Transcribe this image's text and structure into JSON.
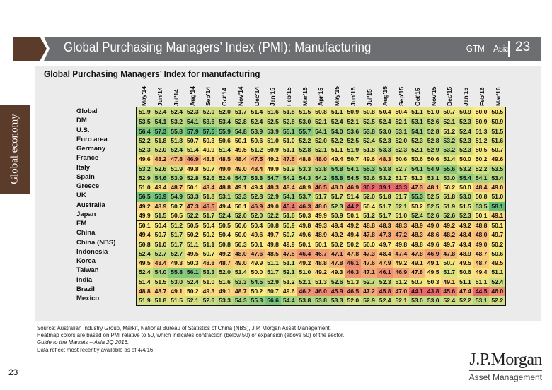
{
  "header": {
    "title": "Global Purchasing Managers’ Index (PMI): Manufacturing",
    "section": "GTM – Asia",
    "page_number": "23"
  },
  "sidebar": {
    "label": "Global economy"
  },
  "panel": {
    "subtitle": "Global Purchasing Managers’ Index for manufacturing"
  },
  "heatmap_colors": {
    "low": "#e8696b",
    "mid": "#ffeb84",
    "high": "#63be7b",
    "midpoint": 50
  },
  "chart_data": {
    "type": "heatmap",
    "title": "Global Purchasing Managers’ Index for manufacturing",
    "columns": [
      "May'14",
      "Jun'14",
      "Jul'14",
      "Aug'14",
      "Sep'14",
      "Oct'14",
      "Nov'14",
      "Dec'14",
      "Jan'15",
      "Feb'15",
      "Mar'15",
      "Apr'15",
      "May'15",
      "Jun'15",
      "Jul'15",
      "Aug'15",
      "Sep'15",
      "Oct'15",
      "Nov'15",
      "Dec'15",
      "Jan'16",
      "Feb'16",
      "Mar'16"
    ],
    "rows": [
      {
        "name": "Global",
        "values": [
          51.9,
          52.4,
          52.4,
          52.3,
          52.0,
          52.0,
          51.7,
          51.4,
          51.6,
          51.8,
          51.5,
          50.8,
          51.1,
          50.9,
          50.8,
          50.4,
          50.4,
          51.1,
          51.0,
          50.7,
          50.9,
          50.0,
          50.5
        ]
      },
      {
        "name": "DM",
        "values": [
          53.5,
          54.1,
          53.2,
          54.1,
          53.6,
          53.4,
          52.8,
          52.4,
          52.5,
          52.8,
          53.0,
          52.1,
          52.4,
          52.1,
          52.5,
          52.4,
          52.1,
          53.1,
          52.6,
          52.1,
          52.3,
          50.9,
          50.9
        ]
      },
      {
        "name": "U.S.",
        "values": [
          56.4,
          57.3,
          55.8,
          57.9,
          57.5,
          55.9,
          54.8,
          53.9,
          53.9,
          55.1,
          55.7,
          54.1,
          54.0,
          53.6,
          53.8,
          53.0,
          53.1,
          54.1,
          52.8,
          51.2,
          52.4,
          51.3,
          51.5
        ]
      },
      {
        "name": "Euro area",
        "values": [
          52.2,
          51.8,
          51.8,
          50.7,
          50.3,
          50.6,
          50.1,
          50.6,
          51.0,
          51.0,
          52.2,
          52.0,
          52.2,
          52.5,
          52.4,
          52.3,
          52.0,
          52.3,
          52.8,
          53.2,
          52.3,
          51.2,
          51.6
        ]
      },
      {
        "name": "Germany",
        "values": [
          52.3,
          52.0,
          52.4,
          51.4,
          49.9,
          51.4,
          49.5,
          51.2,
          50.9,
          51.1,
          52.8,
          52.1,
          51.1,
          51.9,
          51.8,
          53.3,
          52.3,
          52.1,
          52.9,
          53.2,
          52.3,
          50.5,
          50.7
        ]
      },
      {
        "name": "France",
        "values": [
          49.6,
          48.2,
          47.8,
          46.9,
          48.8,
          48.5,
          48.4,
          47.5,
          49.2,
          47.6,
          48.8,
          48.0,
          49.4,
          50.7,
          49.6,
          48.3,
          50.6,
          50.6,
          50.6,
          51.4,
          50.0,
          50.2,
          49.6
        ]
      },
      {
        "name": "Italy",
        "values": [
          53.2,
          52.6,
          51.9,
          49.8,
          50.7,
          49.0,
          49.0,
          48.4,
          49.9,
          51.9,
          53.3,
          53.8,
          54.8,
          54.1,
          55.3,
          53.8,
          52.7,
          54.1,
          54.9,
          55.6,
          53.2,
          52.2,
          53.5
        ]
      },
      {
        "name": "Spain",
        "values": [
          52.9,
          54.6,
          53.9,
          52.8,
          52.6,
          52.6,
          54.7,
          53.8,
          54.7,
          54.2,
          54.3,
          54.2,
          55.8,
          54.5,
          53.6,
          53.2,
          51.7,
          51.3,
          53.1,
          53.0,
          55.4,
          54.1,
          53.4
        ]
      },
      {
        "name": "Greece",
        "values": [
          51.0,
          49.4,
          48.7,
          50.1,
          48.4,
          48.8,
          49.1,
          49.4,
          48.3,
          48.4,
          48.9,
          46.5,
          48.0,
          46.9,
          30.2,
          39.1,
          43.3,
          47.3,
          48.1,
          50.2,
          50.0,
          48.4,
          49.0
        ]
      },
      {
        "name": "UK",
        "values": [
          56.5,
          56.9,
          54.9,
          53.3,
          51.8,
          53.1,
          53.3,
          52.8,
          52.9,
          54.1,
          53.7,
          51.7,
          51.7,
          51.4,
          52.0,
          51.8,
          51.7,
          55.3,
          52.5,
          51.8,
          53.0,
          50.8,
          51.0
        ]
      },
      {
        "name": "Australia",
        "values": [
          49.2,
          48.9,
          50.7,
          47.3,
          46.5,
          49.4,
          50.1,
          46.9,
          49.0,
          45.4,
          46.3,
          48.0,
          52.3,
          44.2,
          50.4,
          51.7,
          52.1,
          50.2,
          52.5,
          51.9,
          51.5,
          53.5,
          58.1
        ]
      },
      {
        "name": "Japan",
        "values": [
          49.9,
          51.5,
          50.5,
          52.2,
          51.7,
          52.4,
          52.0,
          52.0,
          52.2,
          51.6,
          50.3,
          49.9,
          50.9,
          50.1,
          51.2,
          51.7,
          51.0,
          52.4,
          52.6,
          52.6,
          52.3,
          50.1,
          49.1
        ]
      },
      {
        "name": "EM",
        "values": [
          50.1,
          50.4,
          51.2,
          50.5,
          50.4,
          50.5,
          50.6,
          50.4,
          50.8,
          50.9,
          49.8,
          49.3,
          49.4,
          49.2,
          48.8,
          48.3,
          48.3,
          48.9,
          49.0,
          49.2,
          49.2,
          48.8,
          50.1
        ]
      },
      {
        "name": "China",
        "values": [
          49.4,
          50.7,
          51.7,
          50.2,
          50.2,
          50.4,
          50.0,
          49.6,
          49.7,
          50.7,
          49.6,
          48.9,
          49.2,
          49.4,
          47.8,
          47.3,
          47.2,
          48.3,
          48.6,
          48.2,
          48.4,
          48.0,
          49.7
        ]
      },
      {
        "name": "China (NBS)",
        "values": [
          50.8,
          51.0,
          51.7,
          51.1,
          51.1,
          50.8,
          50.3,
          50.1,
          49.8,
          49.9,
          50.1,
          50.1,
          50.2,
          50.2,
          50.0,
          49.7,
          49.8,
          49.8,
          49.6,
          49.7,
          49.4,
          49.0,
          50.2
        ]
      },
      {
        "name": "Indonesia",
        "values": [
          52.4,
          52.7,
          52.7,
          49.5,
          50.7,
          49.2,
          48.0,
          47.6,
          48.5,
          47.5,
          46.4,
          46.7,
          47.1,
          47.8,
          47.3,
          48.4,
          47.4,
          47.8,
          46.9,
          47.8,
          48.9,
          48.7,
          50.6
        ]
      },
      {
        "name": "Korea",
        "values": [
          49.5,
          48.4,
          49.3,
          50.3,
          48.8,
          48.7,
          49.0,
          49.9,
          51.1,
          51.1,
          49.2,
          48.8,
          47.8,
          46.1,
          47.6,
          47.9,
          49.2,
          49.1,
          49.1,
          50.7,
          49.5,
          48.7,
          49.5
        ]
      },
      {
        "name": "Taiwan",
        "values": [
          52.4,
          54.0,
          55.8,
          56.1,
          53.3,
          52.0,
          51.4,
          50.0,
          51.7,
          52.1,
          51.0,
          49.2,
          49.3,
          46.3,
          47.1,
          46.1,
          46.9,
          47.8,
          49.5,
          51.7,
          50.6,
          49.4,
          51.1
        ]
      },
      {
        "name": "India",
        "values": [
          51.4,
          51.5,
          53.0,
          52.4,
          51.0,
          51.6,
          53.3,
          54.5,
          52.9,
          51.2,
          52.1,
          51.3,
          52.6,
          51.3,
          52.7,
          52.3,
          51.2,
          50.7,
          50.3,
          49.1,
          51.1,
          51.1,
          52.4
        ]
      },
      {
        "name": "Brazil",
        "values": [
          48.8,
          48.7,
          49.1,
          50.2,
          49.3,
          49.1,
          48.7,
          50.2,
          50.7,
          49.6,
          46.2,
          46.0,
          45.9,
          46.5,
          47.2,
          45.8,
          47.0,
          44.1,
          43.8,
          45.6,
          47.4,
          44.5,
          46.0
        ]
      },
      {
        "name": "Mexico",
        "values": [
          51.9,
          51.8,
          51.5,
          52.1,
          52.6,
          53.3,
          54.3,
          55.3,
          56.6,
          54.4,
          53.8,
          53.8,
          53.3,
          52.0,
          52.9,
          52.4,
          52.1,
          53.0,
          53.0,
          52.4,
          52.2,
          53.1,
          52.2
        ]
      }
    ],
    "group_breaks_after": [
      "Global",
      "Japan"
    ]
  },
  "footer": {
    "source": "Source: Australian Industry Group, Markit, National Bureau of Statistics of China (NBS), J.P. Morgan Asset Management.",
    "note": "Heatmap colors are based on PMI relative to 50, which indicates contraction (below 50) or expansion (above 50) of the sector.",
    "guide": "Guide to the Markets – Asia 2Q 2016.",
    "data_note": "Data reflect most recently available as of 4/4/16.",
    "page_number": "23",
    "logo_top": "J.P.Morgan",
    "logo_bottom": "Asset Management"
  }
}
